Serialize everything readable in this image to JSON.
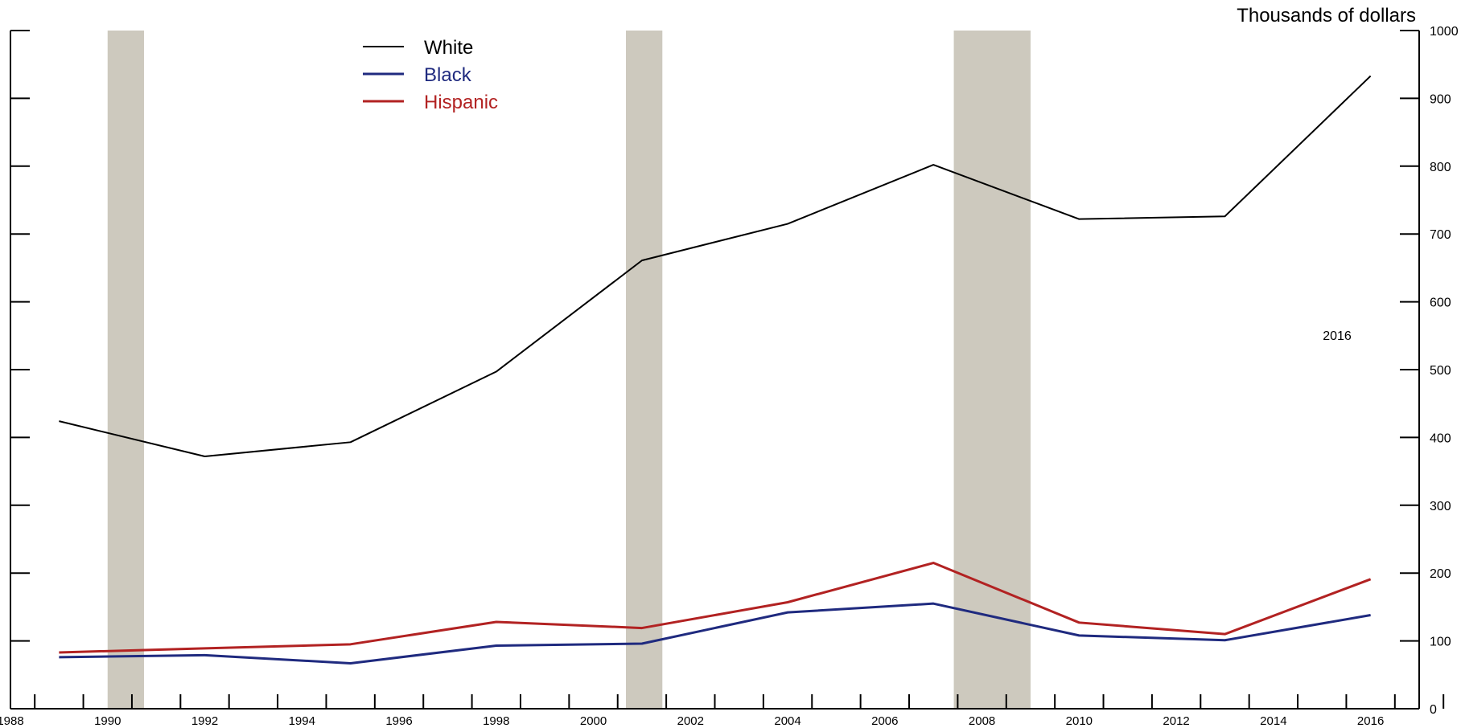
{
  "chart_data": {
    "type": "line",
    "title": "",
    "unit_label": "Thousands of dollars",
    "annotation": "2016",
    "xlim": [
      1988,
      2017
    ],
    "ylim": [
      0,
      1000
    ],
    "x_ticks_labeled": [
      1988,
      1990,
      1992,
      1994,
      1996,
      1998,
      2000,
      2002,
      2004,
      2006,
      2008,
      2010,
      2012,
      2014,
      2016
    ],
    "x_tick_labels": [
      "1988",
      "1990",
      "1992",
      "1994",
      "1996",
      "1998",
      "2000",
      "2002",
      "2004",
      "2006",
      "2008",
      "2010",
      "2012",
      "2014",
      "2016"
    ],
    "y_ticks": [
      0,
      100,
      200,
      300,
      400,
      500,
      600,
      700,
      800,
      900,
      1000
    ],
    "y_tick_labels": [
      "0",
      "100",
      "200",
      "300",
      "400",
      "500",
      "600",
      "700",
      "800",
      "900",
      "1000"
    ],
    "shaded_periods": [
      {
        "start": 1990.0,
        "end": 1990.75
      },
      {
        "start": 2000.67,
        "end": 2001.42
      },
      {
        "start": 2007.42,
        "end": 2009.0
      }
    ],
    "x": [
      1989,
      1992,
      1995,
      1998,
      2001,
      2004,
      2007,
      2010,
      2013,
      2016
    ],
    "series": [
      {
        "name": "White",
        "color": "#000000",
        "values": [
          424,
          372,
          393,
          497,
          661,
          715,
          802,
          722,
          726,
          933
        ]
      },
      {
        "name": "Black",
        "color": "#1f2a7f",
        "values": [
          76,
          79,
          67,
          93,
          96,
          142,
          155,
          108,
          101,
          138
        ]
      },
      {
        "name": "Hispanic",
        "color": "#b22222",
        "values": [
          83,
          89,
          95,
          128,
          119,
          157,
          215,
          127,
          110,
          191
        ]
      }
    ],
    "legend_placement": "top-left",
    "grid": false
  }
}
